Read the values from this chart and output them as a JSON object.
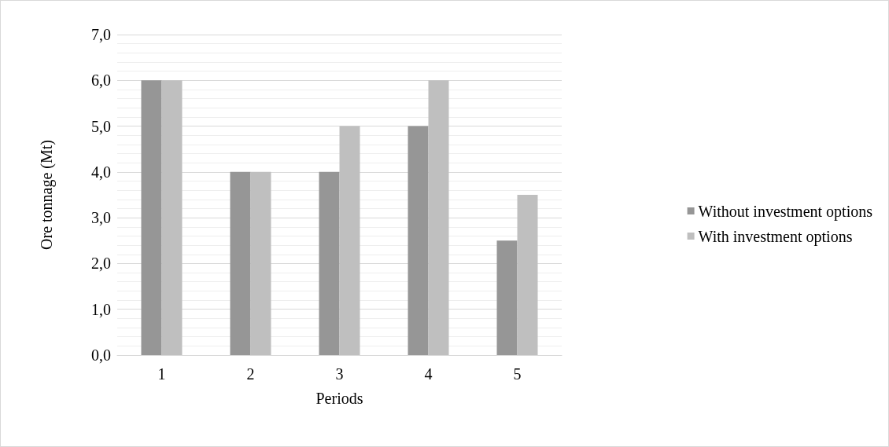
{
  "chart_data": {
    "type": "bar",
    "xlabel": "Periods",
    "ylabel": "Ore tonnage (Mt)",
    "categories": [
      "1",
      "2",
      "3",
      "4",
      "5"
    ],
    "series": [
      {
        "name": "Without investment options",
        "color": "#969696",
        "values": [
          6,
          4,
          4,
          5,
          2.5
        ]
      },
      {
        "name": "With investment options",
        "color": "#bfbfbf",
        "values": [
          6,
          4,
          5,
          6,
          3.5
        ]
      }
    ],
    "ylim": [
      0,
      7
    ],
    "yticks": [
      {
        "value": 0,
        "label": "0,0"
      },
      {
        "value": 1,
        "label": "1,0"
      },
      {
        "value": 2,
        "label": "2,0"
      },
      {
        "value": 3,
        "label": "3,0"
      },
      {
        "value": 4,
        "label": "4,0"
      },
      {
        "value": 5,
        "label": "5,0"
      },
      {
        "value": 6,
        "label": "6,0"
      },
      {
        "value": 7,
        "label": "7,0"
      }
    ],
    "grid": true,
    "legend": "right"
  }
}
